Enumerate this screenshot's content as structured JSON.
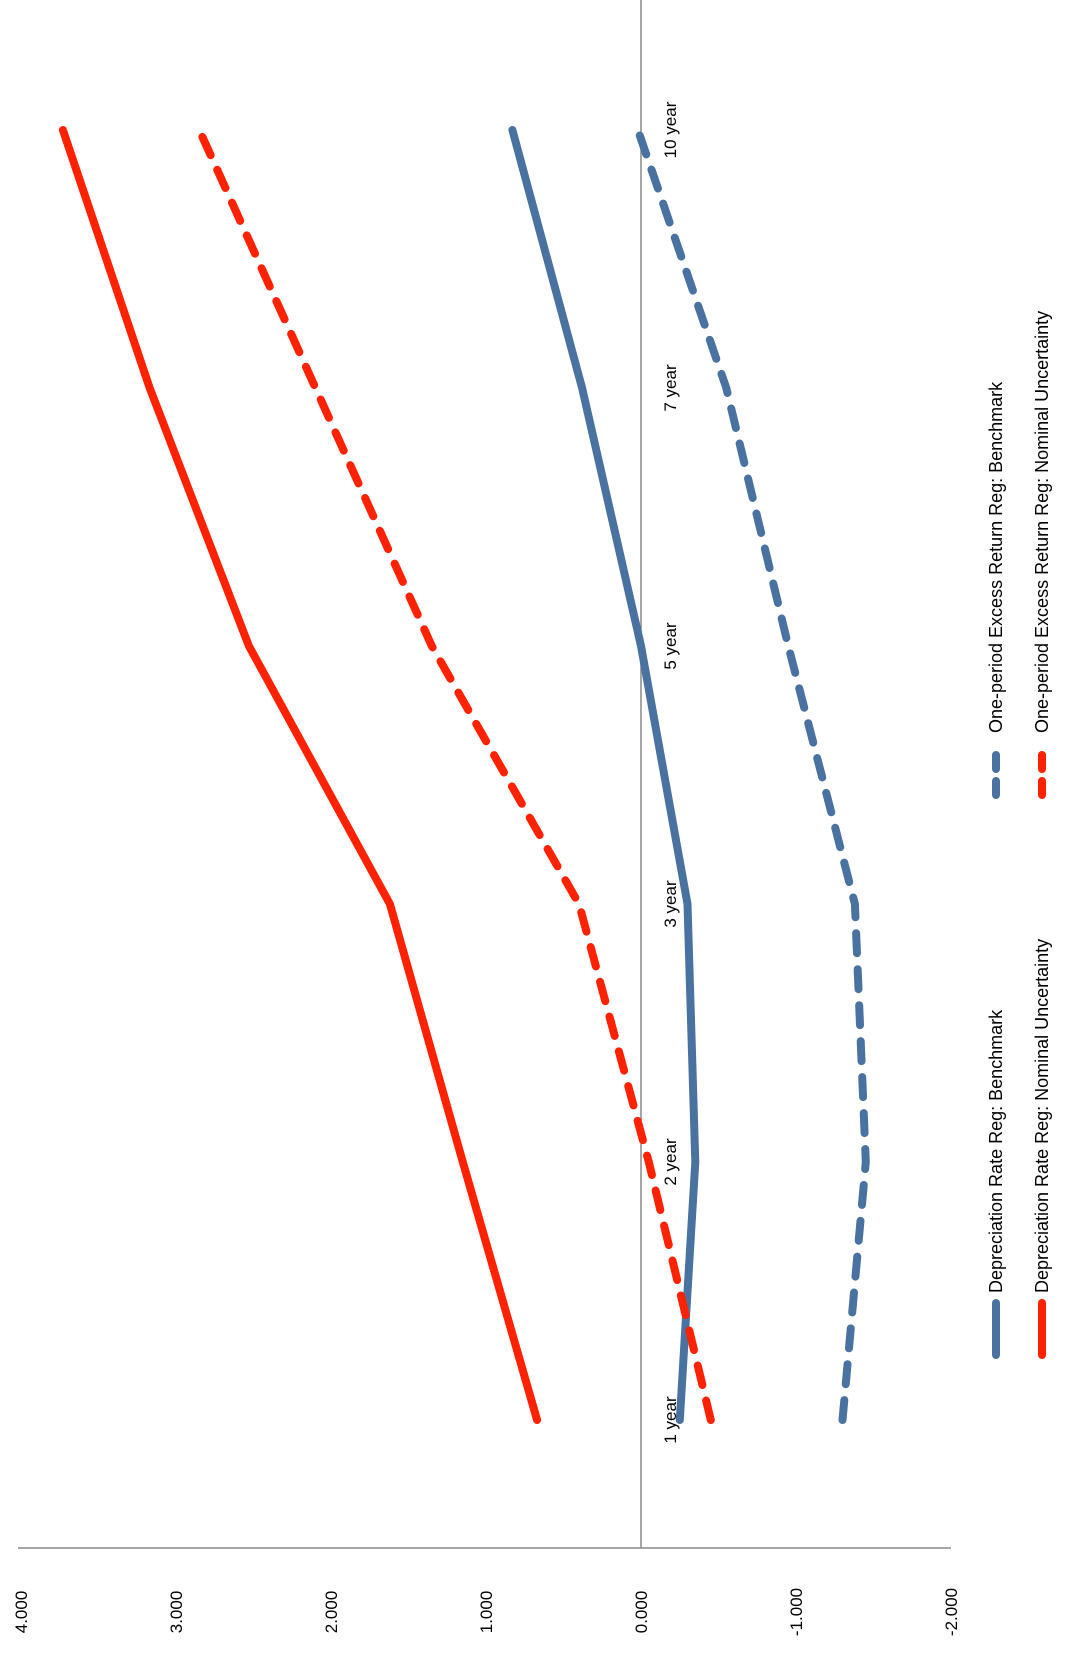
{
  "chart_data": {
    "type": "line",
    "orientation": "rotated-90-clockwise",
    "categories": [
      "1 year",
      "2 year",
      "3 year",
      "5 year",
      "7 year",
      "10 year"
    ],
    "y_ticks": [
      "4.000",
      "3.000",
      "2.000",
      "1.000",
      "0.000",
      "-1.000",
      "-2.000"
    ],
    "ylim": [
      -2,
      4
    ],
    "grid": false,
    "legend_position": "right",
    "series": [
      {
        "name": "Depreciation Rate Reg: Benchmark",
        "color": "#4a72a0",
        "style": "solid",
        "values": [
          -0.25,
          -0.35,
          -0.3,
          0.0,
          0.38,
          0.83
        ]
      },
      {
        "name": "One-period Excess Return Reg: Benchmark",
        "color": "#4a72a0",
        "style": "dashed",
        "values": [
          -1.3,
          -1.45,
          -1.38,
          -0.95,
          -0.55,
          0.02
        ]
      },
      {
        "name": "Depreciation Rate Reg: Nominal Uncertainty",
        "color": "#ff2200",
        "style": "solid",
        "values": [
          0.67,
          1.15,
          1.62,
          2.53,
          3.17,
          3.73
        ]
      },
      {
        "name": "One-period Excess Return Reg: Nominal Uncertainty",
        "color": "#ff2200",
        "style": "dashed",
        "values": [
          -0.45,
          -0.05,
          0.4,
          1.35,
          2.1,
          2.85
        ]
      }
    ]
  }
}
